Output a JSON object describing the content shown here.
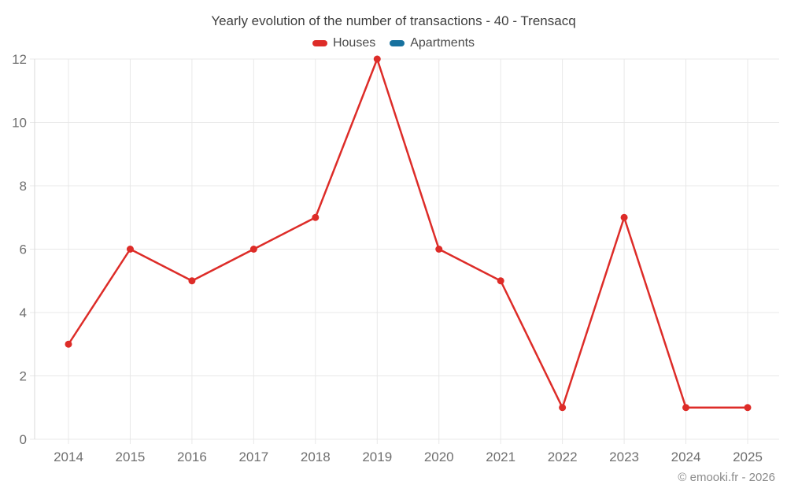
{
  "header": {
    "title": "Yearly evolution of the number of transactions - 40 - Trensacq"
  },
  "legend": {
    "items": [
      {
        "label": "Houses",
        "color": "#dd2c28"
      },
      {
        "label": "Apartments",
        "color": "#17719e"
      }
    ]
  },
  "footer": {
    "attribution": "© emooki.fr - 2026"
  },
  "colors": {
    "grid": "#e8e8e8",
    "axis": "#dadada",
    "tick_label": "#6f6f6f",
    "houses": "#dd2c28",
    "apartments": "#17719e"
  },
  "chart_data": {
    "type": "line",
    "title": "Yearly evolution of the number of transactions - 40 - Trensacq",
    "x": [
      2014,
      2015,
      2016,
      2017,
      2018,
      2019,
      2020,
      2021,
      2022,
      2023,
      2024,
      2025
    ],
    "series": [
      {
        "name": "Houses",
        "color": "#dd2c28",
        "values": [
          3,
          6,
          5,
          6,
          7,
          12,
          6,
          5,
          1,
          7,
          1,
          1
        ]
      },
      {
        "name": "Apartments",
        "color": "#17719e",
        "values": []
      }
    ],
    "xlabel": "",
    "ylabel": "",
    "ylim": [
      0,
      12
    ],
    "yticks": [
      0,
      2,
      4,
      6,
      8,
      10,
      12
    ],
    "grid": true,
    "legend_position": "top",
    "marker": "circle"
  }
}
